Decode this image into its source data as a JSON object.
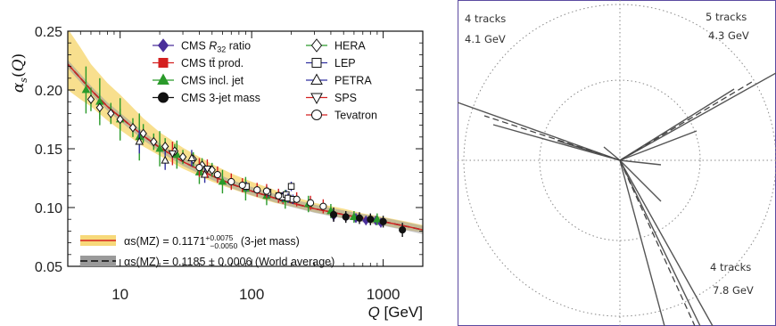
{
  "chart_data": [
    {
      "type": "scatter",
      "ylabel": "αs(Q)",
      "xlabel": "Q [GeV]",
      "x_scale": "log",
      "xlim": [
        4,
        2000
      ],
      "ylim": [
        0.05,
        0.25
      ],
      "x_ticks": [
        {
          "value": 10,
          "label": "10"
        },
        {
          "value": 100,
          "label": "100"
        },
        {
          "value": 1000,
          "label": "1000"
        }
      ],
      "y_ticks": [
        {
          "value": 0.05,
          "label": "0.05"
        },
        {
          "value": 0.1,
          "label": "0.10"
        },
        {
          "value": 0.15,
          "label": "0.15"
        },
        {
          "value": 0.2,
          "label": "0.20"
        },
        {
          "value": 0.25,
          "label": "0.25"
        }
      ],
      "grid": false,
      "band_label": "αs(MZ) = 0.1171",
      "band_uncertainty_up": "+0.0075",
      "band_uncertainty_down": "−0.0050",
      "band_suffix": "(3-jet mass)",
      "band_color": "#f7d97a",
      "band_line_color": "#d62020",
      "world_label": "αs(MZ) = 0.1185 ± 0.0006 (World average)",
      "world_band_color": "#9a9a9a",
      "world_line_color": "#222222",
      "curve_q": [
        4,
        5,
        6,
        8,
        10,
        15,
        20,
        30,
        50,
        70,
        100,
        150,
        200,
        300,
        500,
        700,
        1000,
        1500,
        2000
      ],
      "curve_alpha": [
        0.222,
        0.21,
        0.2,
        0.186,
        0.177,
        0.161,
        0.151,
        0.139,
        0.127,
        0.12,
        0.114,
        0.108,
        0.104,
        0.099,
        0.094,
        0.091,
        0.088,
        0.084,
        0.081
      ],
      "band_lower": [
        0.2,
        0.192,
        0.186,
        0.174,
        0.166,
        0.152,
        0.144,
        0.133,
        0.122,
        0.116,
        0.11,
        0.104,
        0.101,
        0.096,
        0.091,
        0.088,
        0.085,
        0.081,
        0.079
      ],
      "band_upper": [
        0.252,
        0.236,
        0.222,
        0.206,
        0.196,
        0.176,
        0.164,
        0.151,
        0.137,
        0.129,
        0.122,
        0.115,
        0.11,
        0.104,
        0.099,
        0.095,
        0.092,
        0.088,
        0.085
      ],
      "series": [
        {
          "name": "CMS R32 ratio",
          "label_pre": "CMS ",
          "label_sym": "R",
          "label_sub": "32",
          "label_post": " ratio",
          "marker": "diamond",
          "color": "#4a2f9a",
          "filled": true,
          "points": [
            [
              420,
              0.093,
              0.005
            ],
            [
              520,
              0.092,
              0.004
            ],
            [
              620,
              0.091,
              0.004
            ],
            [
              740,
              0.089,
              0.004
            ],
            [
              880,
              0.089,
              0.004
            ],
            [
              960,
              0.087,
              0.004
            ]
          ]
        },
        {
          "name": "CMS tt̄ prod.",
          "label": "CMS tt̄ prod.",
          "marker": "square",
          "color": "#d42020",
          "filled": true,
          "points": [
            [
              173,
              0.108,
              0.005
            ]
          ]
        },
        {
          "name": "CMS incl. jet",
          "label": "CMS incl. jet",
          "marker": "triangle-up",
          "color": "#2a9a2a",
          "filled": true,
          "points": [
            [
              5.5,
              0.2,
              0.02
            ],
            [
              7,
              0.19,
              0.02
            ],
            [
              10,
              0.175,
              0.018
            ],
            [
              14,
              0.16,
              0.02
            ],
            [
              20,
              0.15,
              0.015
            ],
            [
              27,
              0.145,
              0.012
            ],
            [
              40,
              0.13,
              0.01
            ],
            [
              60,
              0.122,
              0.01
            ],
            [
              90,
              0.116,
              0.01
            ],
            [
              130,
              0.11,
              0.008
            ],
            [
              180,
              0.107,
              0.008
            ],
            [
              270,
              0.103,
              0.007
            ],
            [
              400,
              0.097,
              0.006
            ],
            [
              600,
              0.092,
              0.005
            ],
            [
              900,
              0.09,
              0.005
            ]
          ]
        },
        {
          "name": "CMS 3-jet mass",
          "label": "CMS 3-jet mass",
          "marker": "circle",
          "color": "#111111",
          "filled": true,
          "points": [
            [
              420,
              0.094,
              0.006
            ],
            [
              520,
              0.092,
              0.005
            ],
            [
              660,
              0.091,
              0.005
            ],
            [
              800,
              0.09,
              0.005
            ],
            [
              1000,
              0.088,
              0.005
            ],
            [
              1400,
              0.081,
              0.006
            ]
          ]
        },
        {
          "name": "HERA",
          "label": "HERA",
          "marker": "diamond",
          "color": "#2a9a2a",
          "filled": false,
          "points": [
            [
              6,
              0.192,
              0.01
            ],
            [
              7,
              0.185,
              0.01
            ],
            [
              8.5,
              0.18,
              0.009
            ],
            [
              10,
              0.175,
              0.009
            ],
            [
              12.5,
              0.168,
              0.008
            ],
            [
              15,
              0.163,
              0.008
            ],
            [
              18,
              0.156,
              0.007
            ],
            [
              22,
              0.152,
              0.007
            ],
            [
              26,
              0.148,
              0.006
            ],
            [
              30,
              0.143,
              0.006
            ],
            [
              36,
              0.141,
              0.006
            ],
            [
              42,
              0.136,
              0.006
            ],
            [
              50,
              0.132,
              0.006
            ]
          ]
        },
        {
          "name": "LEP",
          "label": "LEP",
          "marker": "square",
          "color": "#3030a0",
          "filled": false,
          "points": [
            [
              91,
              0.118,
              0.004
            ],
            [
              133,
              0.113,
              0.004
            ],
            [
              161,
              0.11,
              0.004
            ],
            [
              172,
              0.109,
              0.004
            ],
            [
              183,
              0.111,
              0.004
            ],
            [
              189,
              0.108,
              0.004
            ],
            [
              200,
              0.118,
              0.004
            ],
            [
              206,
              0.107,
              0.004
            ]
          ]
        },
        {
          "name": "PETRA",
          "label": "PETRA",
          "marker": "triangle-up",
          "color": "#3030a0",
          "filled": false,
          "points": [
            [
              14,
              0.156,
              0.01
            ],
            [
              22,
              0.14,
              0.008
            ],
            [
              35,
              0.142,
              0.007
            ],
            [
              44,
              0.128,
              0.007
            ]
          ]
        },
        {
          "name": "SPS",
          "label": "SPS",
          "marker": "triangle-down",
          "color": "#d42020",
          "filled": false,
          "points": [
            [
              25,
              0.146,
              0.01
            ],
            [
              46,
              0.133,
              0.008
            ]
          ]
        },
        {
          "name": "Tevatron",
          "label": "Tevatron",
          "marker": "circle",
          "color": "#d42020",
          "filled": false,
          "points": [
            [
              40,
              0.134,
              0.008
            ],
            [
              55,
              0.128,
              0.007
            ],
            [
              70,
              0.122,
              0.007
            ],
            [
              85,
              0.119,
              0.006
            ],
            [
              110,
              0.115,
              0.006
            ],
            [
              130,
              0.114,
              0.006
            ],
            [
              160,
              0.11,
              0.006
            ],
            [
              220,
              0.107,
              0.006
            ],
            [
              280,
              0.104,
              0.006
            ],
            [
              350,
              0.101,
              0.006
            ]
          ]
        }
      ]
    }
  ],
  "event_display": {
    "groups": [
      {
        "tracks": "4 tracks",
        "energy": "4.1 GeV",
        "position": "top-left"
      },
      {
        "tracks": "5 tracks",
        "energy": "4.3 GeV",
        "position": "top-right"
      },
      {
        "tracks": "4 tracks",
        "energy": "7.8 GeV",
        "position": "bottom-right"
      }
    ],
    "frame_color": "#5b4aa0"
  }
}
